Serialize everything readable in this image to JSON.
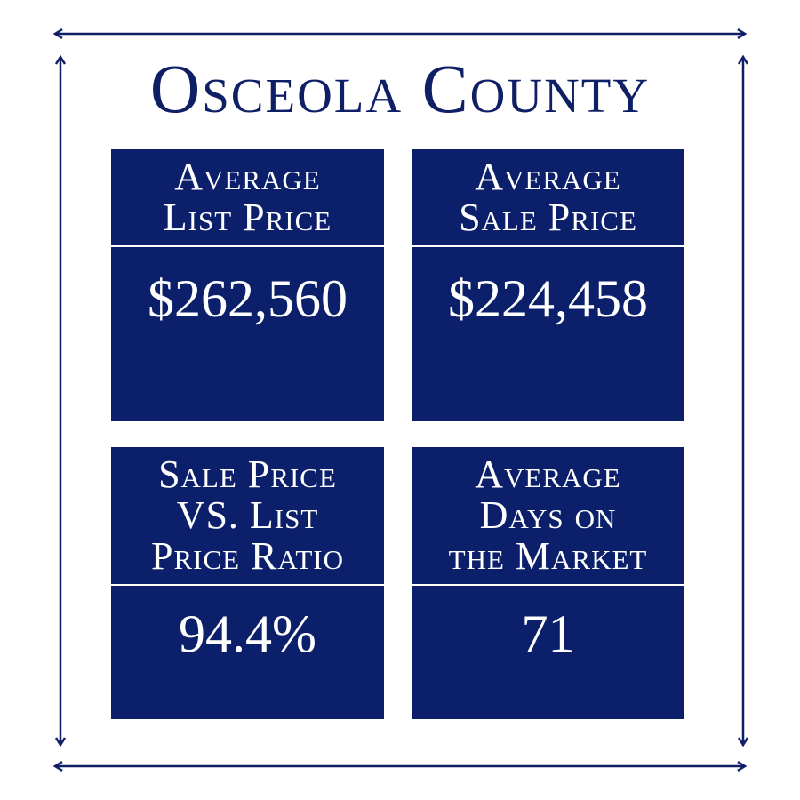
{
  "title": "Osceola County",
  "cards": [
    {
      "label_lines": [
        "Average",
        "List Price"
      ],
      "value": "$262,560"
    },
    {
      "label_lines": [
        "Average",
        "Sale Price"
      ],
      "value": "$224,458"
    },
    {
      "label_lines": [
        "Sale Price",
        "VS. List",
        "Price Ratio"
      ],
      "value": "94.4%"
    },
    {
      "label_lines": [
        "Average",
        "Days on",
        "the Market"
      ],
      "value": "71"
    }
  ]
}
